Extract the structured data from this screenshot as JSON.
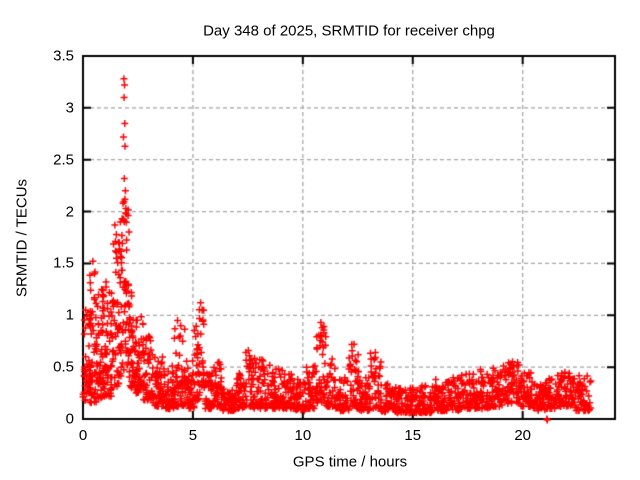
{
  "chart_data": {
    "type": "scatter",
    "title": "Day 348 of 2025, SRMTID for receiver chpg",
    "xlabel": "GPS time / hours",
    "ylabel": "SRMTID / TECUs",
    "xlim": [
      0,
      24.2
    ],
    "ylim": [
      0,
      3.5
    ],
    "xticks": [
      0,
      5,
      10,
      15,
      20
    ],
    "xtick_labels": [
      "0",
      "5",
      "10",
      "15",
      "20"
    ],
    "yticks": [
      0,
      0.5,
      1,
      1.5,
      2,
      2.5,
      3,
      3.5
    ],
    "ytick_labels": [
      "0",
      "0.5",
      "1",
      "1.5",
      "2",
      "2.5",
      "3",
      "3.5"
    ],
    "grid": {
      "show": true,
      "color": "#a6a6a6",
      "dash": [
        4,
        3
      ]
    },
    "marker": {
      "shape": "plus",
      "color": "#ff0000",
      "size": 7
    },
    "series_name": "SRMTID",
    "seed": 348,
    "clusters": [
      [
        0.0,
        0.35,
        0.18,
        1.05,
        40,
        1.5
      ],
      [
        0.3,
        0.6,
        0.15,
        1.42,
        45,
        1.8
      ],
      [
        0.6,
        0.95,
        0.2,
        1.25,
        50,
        1.7
      ],
      [
        0.95,
        1.3,
        0.22,
        1.3,
        50,
        1.6
      ],
      [
        1.3,
        1.65,
        0.3,
        1.85,
        45,
        1.7
      ],
      [
        1.65,
        1.85,
        0.4,
        1.95,
        30,
        1.4
      ],
      [
        1.85,
        2.1,
        0.45,
        2.15,
        40,
        1.2
      ],
      [
        2.1,
        2.4,
        0.3,
        1.25,
        40,
        1.6
      ],
      [
        2.4,
        2.75,
        0.25,
        1.02,
        45,
        1.6
      ],
      [
        2.75,
        3.15,
        0.18,
        0.8,
        45,
        1.7
      ],
      [
        3.15,
        3.65,
        0.12,
        0.62,
        50,
        1.8
      ],
      [
        3.65,
        4.15,
        0.1,
        0.52,
        50,
        1.8
      ],
      [
        4.15,
        4.65,
        0.12,
        0.9,
        50,
        2.0
      ],
      [
        4.65,
        5.05,
        0.1,
        0.6,
        45,
        1.8
      ],
      [
        5.05,
        5.3,
        0.18,
        0.9,
        25,
        1.4
      ],
      [
        5.25,
        5.55,
        0.2,
        1.1,
        22,
        1.4
      ],
      [
        5.55,
        5.95,
        0.1,
        0.45,
        38,
        1.8
      ],
      [
        5.95,
        6.35,
        0.12,
        0.56,
        35,
        1.7
      ],
      [
        6.35,
        6.95,
        0.08,
        0.32,
        52,
        1.6
      ],
      [
        6.95,
        7.35,
        0.1,
        0.45,
        40,
        1.7
      ],
      [
        7.35,
        7.75,
        0.12,
        0.68,
        38,
        1.6
      ],
      [
        7.75,
        8.35,
        0.1,
        0.6,
        52,
        1.8
      ],
      [
        8.35,
        8.95,
        0.1,
        0.52,
        52,
        1.8
      ],
      [
        8.95,
        9.55,
        0.1,
        0.47,
        52,
        1.8
      ],
      [
        9.55,
        10.15,
        0.08,
        0.4,
        52,
        1.7
      ],
      [
        10.15,
        10.6,
        0.1,
        0.52,
        40,
        1.7
      ],
      [
        10.6,
        11.05,
        0.15,
        0.93,
        42,
        1.4
      ],
      [
        11.05,
        11.5,
        0.12,
        0.6,
        40,
        1.7
      ],
      [
        11.5,
        12.1,
        0.08,
        0.42,
        52,
        1.7
      ],
      [
        12.1,
        12.55,
        0.1,
        0.73,
        40,
        1.5
      ],
      [
        12.55,
        13.05,
        0.08,
        0.42,
        45,
        1.7
      ],
      [
        13.05,
        13.55,
        0.1,
        0.65,
        40,
        1.5
      ],
      [
        13.55,
        14.25,
        0.07,
        0.34,
        58,
        1.7
      ],
      [
        14.25,
        15.05,
        0.06,
        0.3,
        65,
        1.6
      ],
      [
        15.05,
        15.85,
        0.06,
        0.32,
        65,
        1.6
      ],
      [
        15.85,
        16.45,
        0.08,
        0.4,
        52,
        1.7
      ],
      [
        16.45,
        17.15,
        0.08,
        0.4,
        58,
        1.7
      ],
      [
        17.15,
        17.85,
        0.1,
        0.44,
        58,
        1.7
      ],
      [
        17.85,
        18.55,
        0.1,
        0.48,
        58,
        1.7
      ],
      [
        18.55,
        19.15,
        0.12,
        0.52,
        52,
        1.6
      ],
      [
        19.15,
        19.85,
        0.15,
        0.58,
        58,
        1.5
      ],
      [
        19.85,
        20.45,
        0.12,
        0.45,
        52,
        1.7
      ],
      [
        20.45,
        21.1,
        0.08,
        0.35,
        55,
        1.7
      ],
      [
        21.1,
        21.5,
        0.1,
        0.4,
        32,
        1.7
      ],
      [
        21.5,
        22.35,
        0.12,
        0.46,
        68,
        1.7
      ],
      [
        22.35,
        23.1,
        0.08,
        0.42,
        65,
        1.7
      ]
    ],
    "outliers": [
      [
        1.86,
        3.28
      ],
      [
        1.89,
        3.22
      ],
      [
        1.87,
        3.1
      ],
      [
        1.9,
        2.85
      ],
      [
        1.84,
        2.72
      ],
      [
        1.91,
        2.63
      ],
      [
        1.88,
        2.32
      ],
      [
        1.93,
        2.2
      ],
      [
        1.82,
        2.08
      ],
      [
        1.95,
        2.03
      ],
      [
        1.97,
        1.98
      ],
      [
        1.78,
        1.93
      ],
      [
        1.7,
        1.9
      ],
      [
        1.45,
        1.87
      ],
      [
        1.52,
        1.78
      ],
      [
        1.48,
        1.62
      ],
      [
        0.45,
        1.52
      ],
      [
        0.52,
        1.4
      ],
      [
        0.12,
        1.05
      ],
      [
        1.05,
        1.32
      ],
      [
        2.2,
        1.22
      ],
      [
        4.3,
        0.95
      ],
      [
        4.45,
        0.9
      ],
      [
        5.35,
        1.12
      ],
      [
        5.42,
        1.05
      ],
      [
        5.3,
        0.97
      ],
      [
        10.82,
        0.93
      ],
      [
        10.88,
        0.88
      ],
      [
        10.85,
        0.8
      ],
      [
        12.33,
        0.72
      ],
      [
        13.3,
        0.64
      ],
      [
        21.1,
        0.0
      ],
      [
        21.12,
        -0.01
      ]
    ]
  }
}
